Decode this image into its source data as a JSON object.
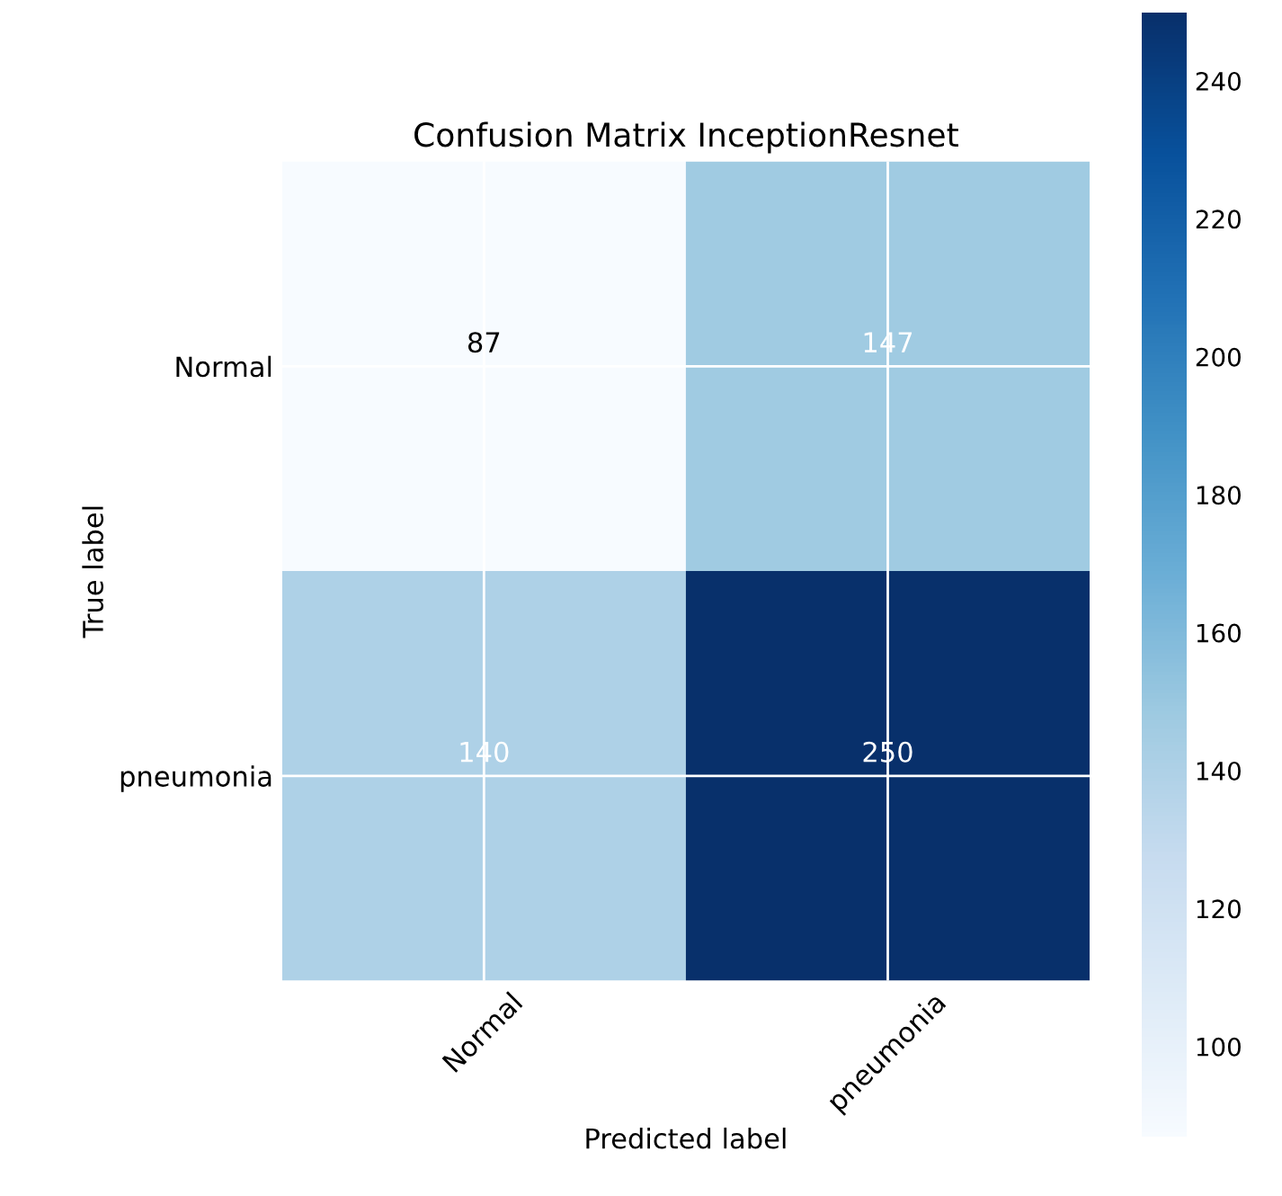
{
  "chart_data": {
    "type": "heatmap",
    "title": "Confusion Matrix InceptionResnet",
    "xlabel": "Predicted label",
    "ylabel": "True label",
    "categories": [
      "Normal",
      "pneumonia"
    ],
    "y_categories": [
      "Normal",
      "pneumonia"
    ],
    "cells": [
      [
        87,
        147
      ],
      [
        140,
        250
      ]
    ],
    "clim": [
      87,
      250
    ],
    "cticks": [
      100,
      120,
      140,
      160,
      180,
      200,
      220,
      240
    ],
    "data_labels": true,
    "grid": true
  }
}
